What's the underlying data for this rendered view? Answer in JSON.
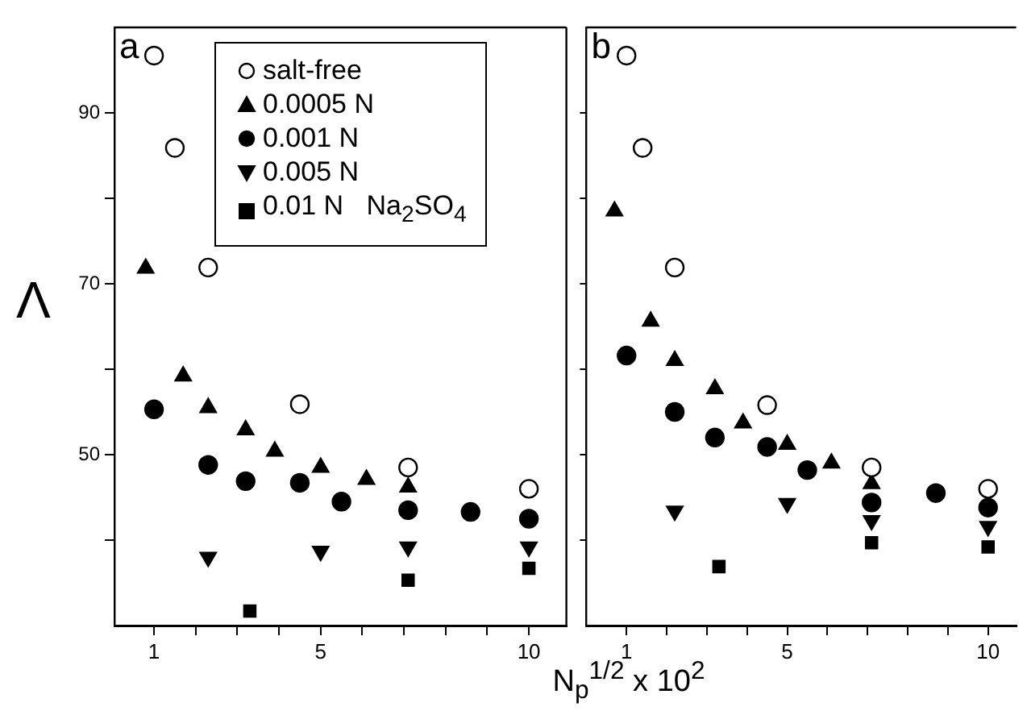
{
  "chart_data": [
    {
      "type": "scatter",
      "xlabel": "N$_{p}$$^{1/2}$ x 10$^{2}$",
      "ylabel": "Λ",
      "annotations": [
        "a"
      ],
      "legend": "top",
      "xlim": [
        0.05,
        10.9
      ],
      "xticks": [
        1,
        {
          "value": 2,
          "label": null
        },
        {
          "value": 3,
          "label": null
        },
        {
          "value": 4,
          "label": null
        },
        5,
        {
          "value": 6,
          "label": null
        },
        {
          "value": 7,
          "label": null
        },
        {
          "value": 8,
          "label": null
        },
        {
          "value": 9,
          "label": null
        },
        10
      ],
      "ylim": [
        30,
        100
      ],
      "yticks": [
        {
          "value": 40,
          "label": null
        },
        50,
        {
          "value": 60,
          "label": null
        },
        70,
        {
          "value": 80,
          "label": null
        },
        90
      ],
      "series": [
        {
          "name": "salt-free",
          "color": "#ffffff",
          "marker": "circle",
          "x": [
            1.0,
            1.5,
            2.3,
            4.5,
            7.1,
            10.0
          ],
          "values": [
            96.7,
            85.9,
            71.9,
            55.9,
            48.5,
            46.0
          ]
        },
        {
          "name": "0.0005 N",
          "color": "#000000",
          "marker": "triangle",
          "x": [
            0.8,
            1.7,
            2.3,
            3.2,
            3.9,
            5.0,
            6.1,
            7.1
          ],
          "values": [
            71.8,
            59.2,
            55.5,
            52.9,
            50.4,
            48.5,
            47.1,
            46.2
          ]
        },
        {
          "name": "0.001 N",
          "color": "#000000",
          "marker": "circle",
          "x": [
            1.0,
            2.3,
            3.2,
            4.5,
            5.5,
            7.1,
            8.6,
            10.0
          ],
          "values": [
            55.3,
            48.8,
            46.9,
            46.7,
            44.5,
            43.5,
            43.3,
            42.5
          ]
        },
        {
          "name": "0.005 N",
          "color": "#000000",
          "marker": "triangle",
          "x": [
            2.3,
            5.0,
            7.1,
            10.0
          ],
          "values": [
            38.0,
            38.7,
            39.2,
            39.2
          ]
        },
        {
          "name": "0.01 N   Na$_{2}$SO$_{4}$",
          "color": "#000000",
          "marker": "square",
          "x": [
            3.3,
            7.1,
            10.0
          ],
          "values": [
            31.7,
            35.3,
            36.7
          ]
        }
      ]
    },
    {
      "type": "scatter",
      "annotations": [
        "b"
      ],
      "tick_labels": "x",
      "xlim": [
        0.0,
        10.7
      ],
      "xticks": [
        1,
        {
          "value": 2,
          "label": null
        },
        {
          "value": 3,
          "label": null
        },
        {
          "value": 4,
          "label": null
        },
        5,
        {
          "value": 6,
          "label": null
        },
        {
          "value": 7,
          "label": null
        },
        {
          "value": 8,
          "label": null
        },
        {
          "value": 9,
          "label": null
        },
        10
      ],
      "ylim": [
        30,
        100
      ],
      "yticks": [
        {
          "value": 40,
          "label": null
        },
        {
          "value": 50,
          "label": null
        },
        {
          "value": 60,
          "label": null
        },
        {
          "value": 70,
          "label": null
        },
        {
          "value": 80,
          "label": null
        },
        {
          "value": 90,
          "label": null
        }
      ],
      "series": [
        {
          "color": "#ffffff",
          "marker": "circle",
          "x": [
            1.0,
            1.4,
            2.2,
            4.5,
            7.1,
            10.0
          ],
          "values": [
            96.7,
            85.9,
            71.9,
            55.8,
            48.5,
            46.0
          ]
        },
        {
          "color": "#000000",
          "marker": "triangle",
          "x": [
            0.7,
            1.6,
            2.2,
            3.2,
            3.9,
            5.0,
            6.1,
            7.1
          ],
          "values": [
            78.5,
            65.6,
            61.0,
            57.7,
            53.7,
            51.2,
            49.0,
            46.6
          ]
        },
        {
          "color": "#000000",
          "marker": "circle",
          "x": [
            1.0,
            2.2,
            3.2,
            4.5,
            5.5,
            7.1,
            8.7,
            10.0
          ],
          "values": [
            61.6,
            55.0,
            52.0,
            50.9,
            48.2,
            44.4,
            45.5,
            43.8
          ]
        },
        {
          "color": "#000000",
          "marker": "triangle",
          "x": [
            2.2,
            5.0,
            7.1,
            10.0
          ],
          "values": [
            43.4,
            44.3,
            42.3,
            41.6
          ]
        },
        {
          "color": "#000000",
          "marker": "square",
          "x": [
            3.3,
            7.1,
            10.0
          ],
          "values": [
            36.9,
            39.7,
            39.2
          ]
        }
      ]
    }
  ]
}
